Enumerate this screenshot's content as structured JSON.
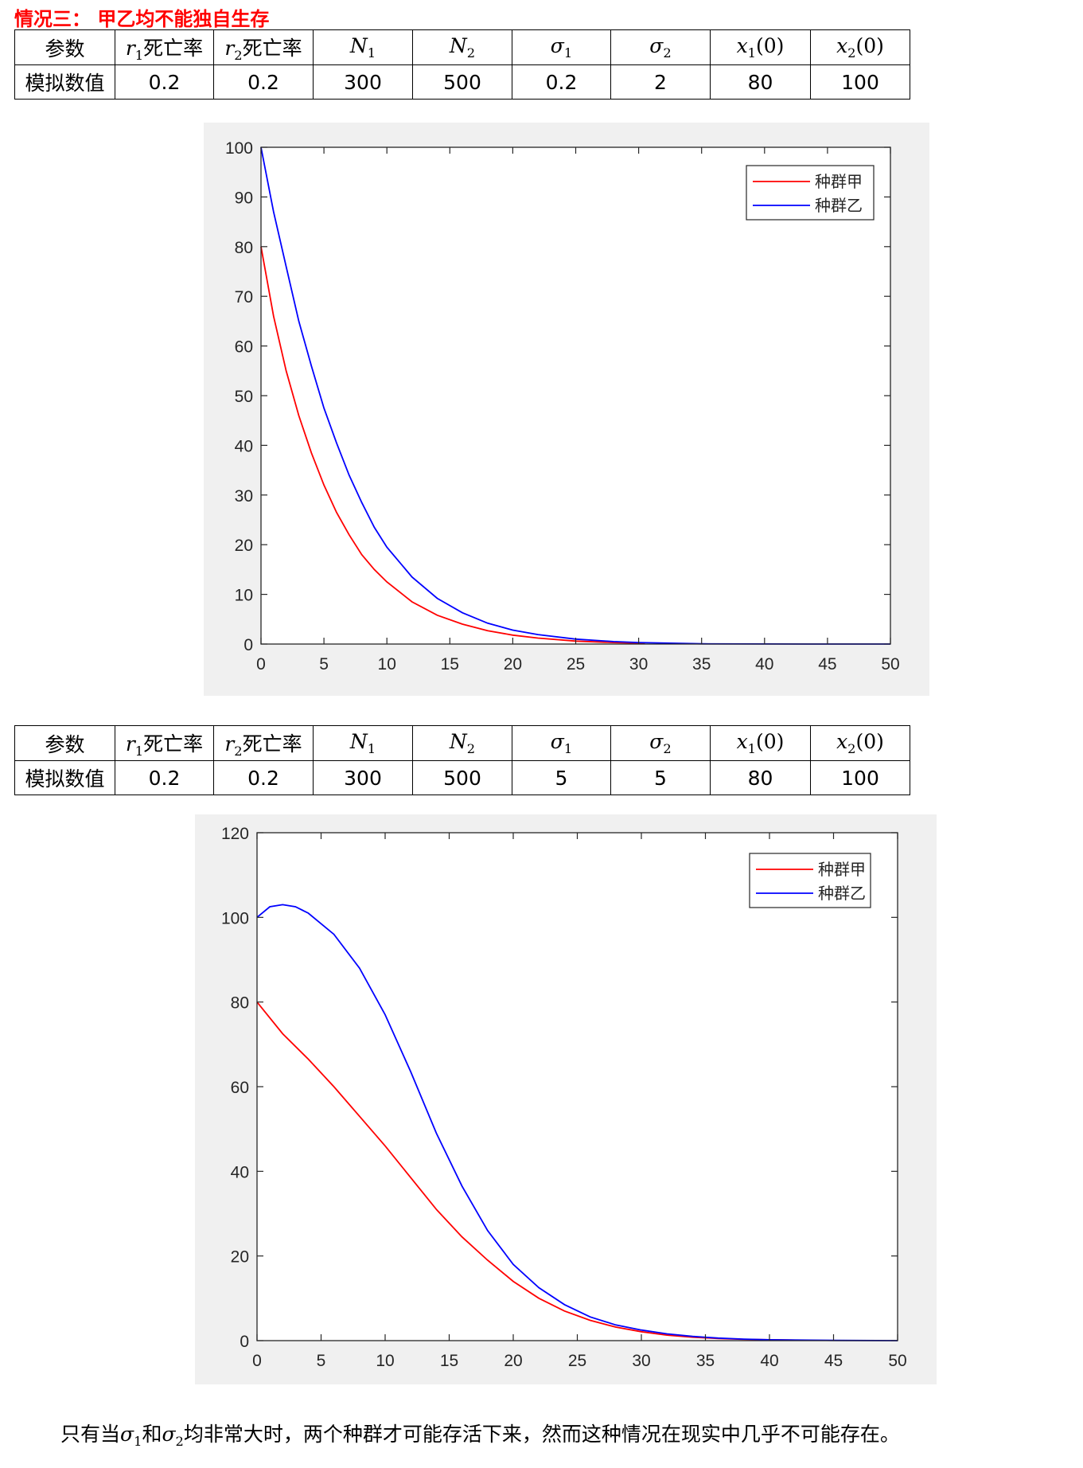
{
  "section_title": "情况三：  甲乙均不能独自生存",
  "tables": [
    {
      "headers": {
        "h0": "参数",
        "h1_var": "r",
        "h1_sub": "1",
        "h1_text": "死亡率",
        "h2_var": "r",
        "h2_sub": "2",
        "h2_text": "死亡率",
        "h3_var": "N",
        "h3_sub": "1",
        "h4_var": "N",
        "h4_sub": "2",
        "h5_var": "σ",
        "h5_sub": "1",
        "h6_var": "σ",
        "h6_sub": "2",
        "h7_var": "x",
        "h7_sub": "1",
        "h7_arg": "(0)",
        "h8_var": "x",
        "h8_sub": "2",
        "h8_arg": "(0)"
      },
      "row_label": "模拟数值",
      "values": [
        "0.2",
        "0.2",
        "300",
        "500",
        "0.2",
        "2",
        "80",
        "100"
      ]
    },
    {
      "headers": {
        "h0": "参数",
        "h1_var": "r",
        "h1_sub": "1",
        "h1_text": "死亡率",
        "h2_var": "r",
        "h2_sub": "2",
        "h2_text": "死亡率",
        "h3_var": "N",
        "h3_sub": "1",
        "h4_var": "N",
        "h4_sub": "2",
        "h5_var": "σ",
        "h5_sub": "1",
        "h6_var": "σ",
        "h6_sub": "2",
        "h7_var": "x",
        "h7_sub": "1",
        "h7_arg": "(0)",
        "h8_var": "x",
        "h8_sub": "2",
        "h8_arg": "(0)"
      },
      "row_label": "模拟数值",
      "values": [
        "0.2",
        "0.2",
        "300",
        "500",
        "5",
        "5",
        "80",
        "100"
      ]
    }
  ],
  "chart_data": [
    {
      "type": "line",
      "xlim": [
        0,
        50
      ],
      "ylim": [
        0,
        100
      ],
      "xticks": [
        0,
        5,
        10,
        15,
        20,
        25,
        30,
        35,
        40,
        45,
        50
      ],
      "yticks": [
        0,
        10,
        20,
        30,
        40,
        50,
        60,
        70,
        80,
        90,
        100
      ],
      "legend_position": "top-right",
      "grid": false,
      "series": [
        {
          "name": "种群甲",
          "color": "#ff0000",
          "x": [
            0,
            1,
            2,
            3,
            4,
            5,
            6,
            7,
            8,
            9,
            10,
            12,
            14,
            16,
            18,
            20,
            22,
            25,
            28,
            30.5
          ],
          "y": [
            80,
            66,
            55,
            46,
            38.5,
            32,
            26.5,
            22,
            18,
            15,
            12.5,
            8.5,
            5.8,
            4,
            2.7,
            1.8,
            1.2,
            0.6,
            0.3,
            0.15
          ]
        },
        {
          "name": "种群乙",
          "color": "#0000ff",
          "x": [
            0,
            1,
            2,
            3,
            4,
            5,
            6,
            7,
            8,
            9,
            10,
            12,
            14,
            16,
            18,
            20,
            22,
            25,
            28,
            30,
            35,
            40,
            45,
            50
          ],
          "y": [
            100,
            87,
            76,
            65,
            56,
            47.5,
            40.5,
            34,
            28.5,
            23.5,
            19.5,
            13.5,
            9.2,
            6.3,
            4.2,
            2.8,
            1.9,
            1.0,
            0.5,
            0.3,
            0.05,
            0.01,
            0,
            0
          ]
        }
      ]
    },
    {
      "type": "line",
      "xlim": [
        0,
        50
      ],
      "ylim": [
        0,
        120
      ],
      "xticks": [
        0,
        5,
        10,
        15,
        20,
        25,
        30,
        35,
        40,
        45,
        50
      ],
      "yticks": [
        0,
        20,
        40,
        60,
        80,
        100,
        120
      ],
      "legend_position": "top-right",
      "grid": false,
      "series": [
        {
          "name": "种群甲",
          "color": "#ff0000",
          "x": [
            0,
            2,
            4,
            6,
            8,
            10,
            12,
            14,
            16,
            18,
            20,
            22,
            24,
            26,
            28,
            30,
            32,
            34,
            36,
            38,
            40,
            42.5
          ],
          "y": [
            80,
            72.5,
            66.5,
            60,
            53,
            46,
            38.5,
            31,
            24.5,
            19,
            14,
            10,
            7,
            4.8,
            3.2,
            2.1,
            1.3,
            0.8,
            0.5,
            0.3,
            0.2,
            0.1
          ]
        },
        {
          "name": "种群乙",
          "color": "#0000ff",
          "x": [
            0,
            1,
            2,
            3,
            4,
            6,
            8,
            10,
            12,
            14,
            16,
            18,
            20,
            22,
            24,
            26,
            28,
            30,
            32,
            34,
            36,
            38,
            40,
            45,
            50
          ],
          "y": [
            100,
            102.5,
            103,
            102.5,
            101,
            96,
            88,
            77,
            63.5,
            49,
            36.5,
            26,
            18,
            12.5,
            8.5,
            5.6,
            3.7,
            2.5,
            1.6,
            1.0,
            0.6,
            0.35,
            0.2,
            0.05,
            0
          ]
        }
      ]
    }
  ],
  "conclusion": {
    "p1": "只有当",
    "sig": "σ",
    "sub1": "1",
    "p2": "和",
    "sub2": "2",
    "p3": "均非常大时，两个种群才可能存活下来，然而这种情况在现实中几乎不可能存在。"
  }
}
